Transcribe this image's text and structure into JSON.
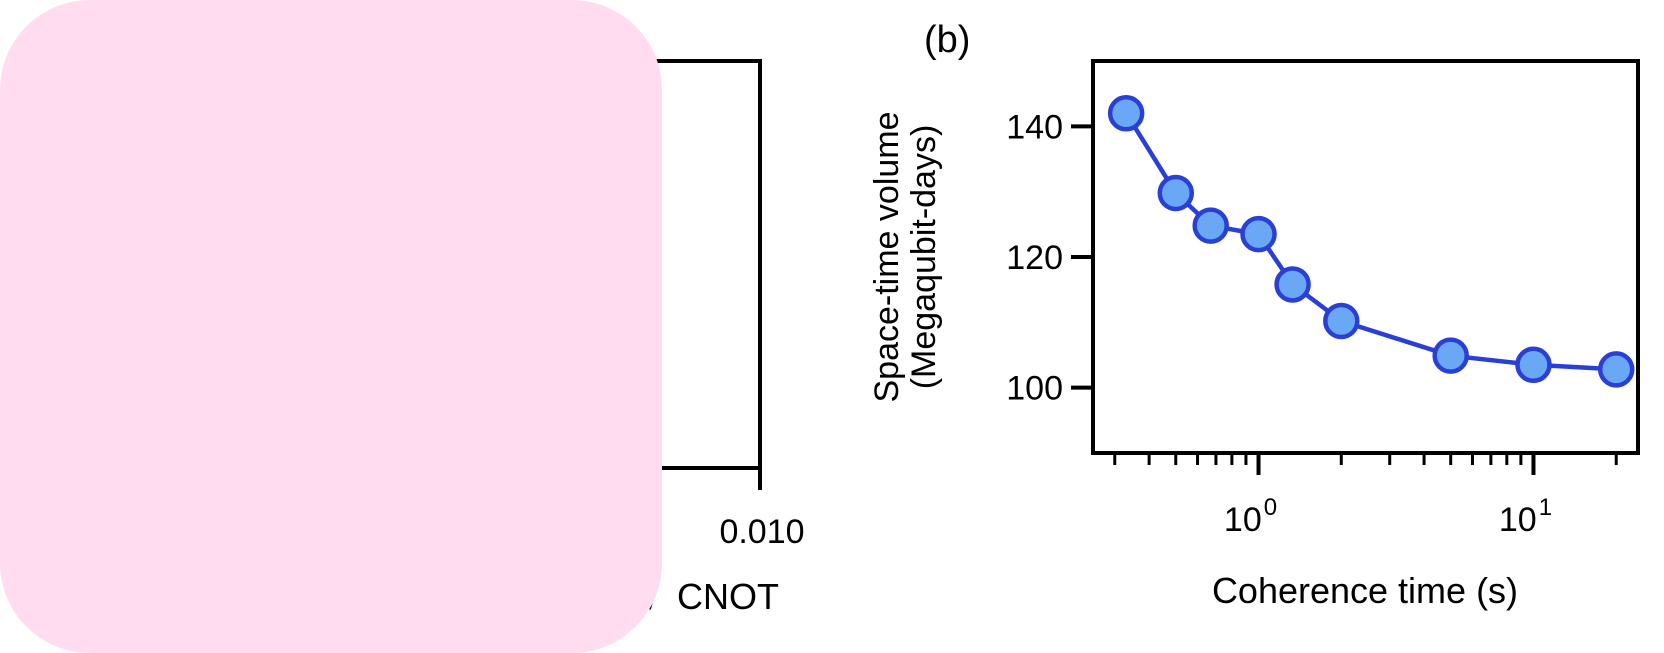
{
  "colors": {
    "line": "#2a3fd6",
    "marker_fill": "#6aa8f5",
    "axis": "#000000",
    "overlay": "#ffdcef"
  },
  "panel_a": {
    "xtick_visible": "0.010",
    "xlabel_visible_fragment": "CNOT"
  },
  "chart_data": [
    {
      "panel": "(b)",
      "type": "line",
      "title": "",
      "xlabel": "Coherence time (s)",
      "ylabel_line1": "Space-time volume",
      "ylabel_line2": "(Megaqubit-days)",
      "xscale": "log",
      "xlim": [
        0.25,
        24
      ],
      "ylim": [
        90,
        150
      ],
      "yticks": [
        100,
        120,
        140
      ],
      "ytick_labels": [
        "100",
        "120",
        "140"
      ],
      "xticks_major": [
        1,
        10
      ],
      "xtick_labels": [
        {
          "base": "10",
          "exp": "0"
        },
        {
          "base": "10",
          "exp": "1"
        }
      ],
      "xticks_minor": [
        0.3,
        0.4,
        0.5,
        0.6,
        0.7,
        0.8,
        0.9,
        2,
        3,
        4,
        5,
        6,
        7,
        8,
        9,
        20
      ],
      "x": [
        0.33,
        0.5,
        0.67,
        1.0,
        1.33,
        2.0,
        5.0,
        10.0,
        20.0
      ],
      "y": [
        142,
        129.8,
        124.8,
        123.5,
        115.8,
        110.2,
        104.9,
        103.5,
        102.8
      ],
      "grid": false,
      "legend": "none"
    }
  ]
}
